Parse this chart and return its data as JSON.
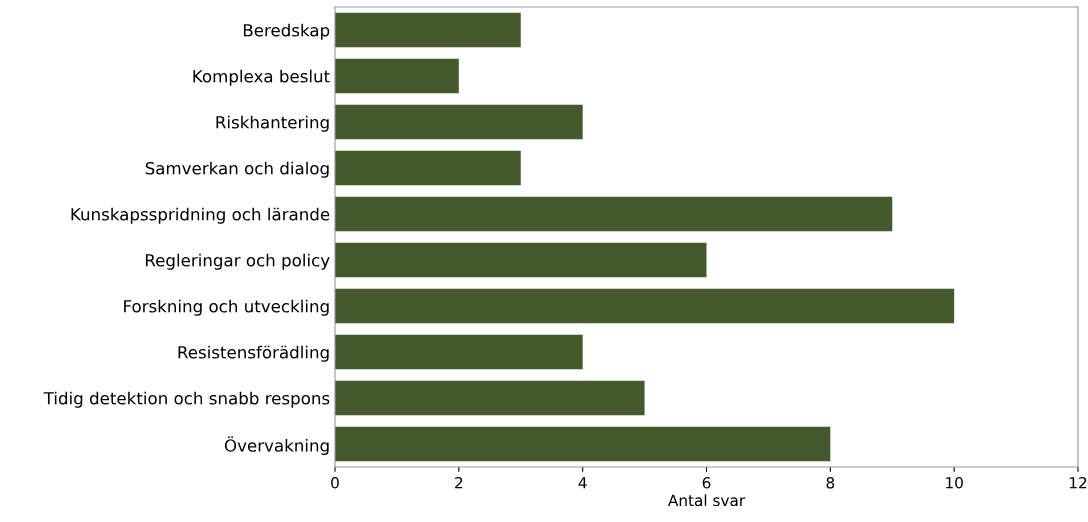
{
  "chart_data": {
    "type": "bar",
    "orientation": "horizontal",
    "xlabel": "Antal svar",
    "categories": [
      "Beredskap",
      "Komplexa beslut",
      "Riskhantering",
      "Samverkan och dialog",
      "Kunskapsspridning och lärande",
      "Regleringar och policy",
      "Forskning och utveckling",
      "Resistensförädling",
      "Tidig detektion och snabb respons",
      "Övervakning"
    ],
    "values": [
      3,
      2,
      4,
      3,
      9,
      6,
      10,
      4,
      5,
      8
    ],
    "color": "#445a2c",
    "xlim": [
      0,
      12
    ],
    "xticks": [
      0,
      2,
      4,
      6,
      8,
      10,
      12
    ],
    "grid": false
  }
}
